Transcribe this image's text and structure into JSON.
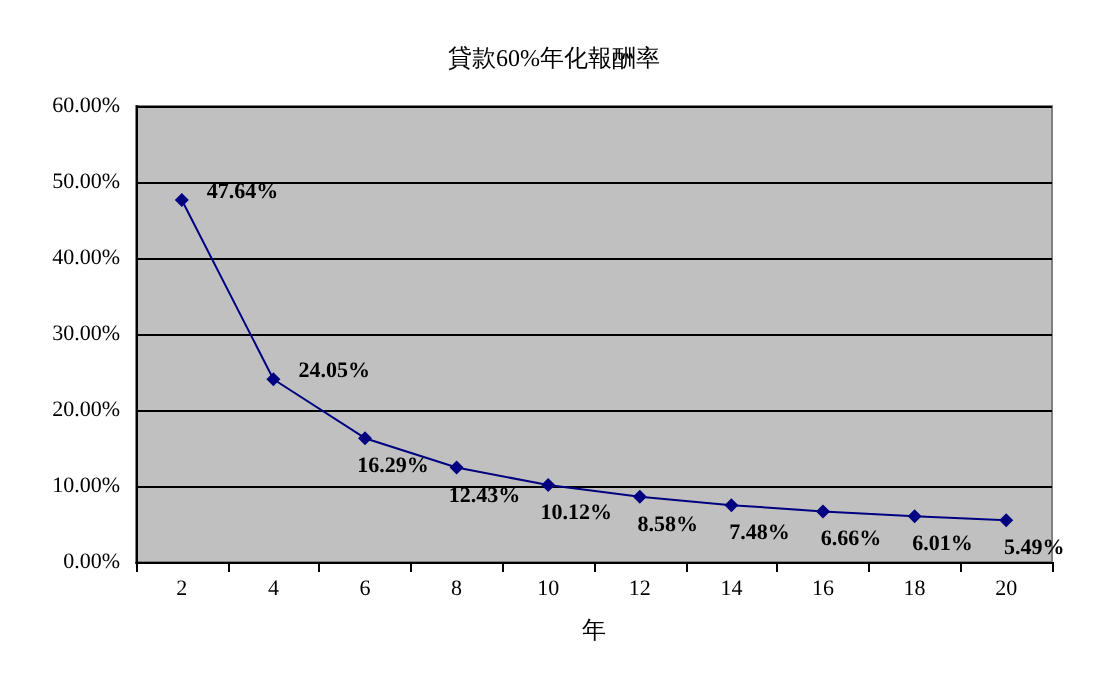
{
  "chart_data": {
    "type": "line",
    "title": "貸款60%年化報酬率",
    "xlabel": "年",
    "categories": [
      "2",
      "4",
      "6",
      "8",
      "10",
      "12",
      "14",
      "16",
      "18",
      "20"
    ],
    "series": [
      {
        "color": "#000080",
        "values": [
          47.64,
          24.05,
          16.29,
          12.43,
          10.12,
          8.58,
          7.48,
          6.66,
          6.01,
          5.49
        ],
        "value_labels": [
          "47.64%",
          "24.05%",
          "16.29%",
          "12.43%",
          "10.12%",
          "8.58%",
          "7.48%",
          "6.66%",
          "6.01%",
          "5.49%"
        ]
      }
    ],
    "ylim": [
      0,
      60
    ],
    "yticks": [
      {
        "value": 0,
        "label": "0.00%"
      },
      {
        "value": 10,
        "label": "10.00%"
      },
      {
        "value": 20,
        "label": "20.00%"
      },
      {
        "value": 30,
        "label": "30.00%"
      },
      {
        "value": 40,
        "label": "40.00%"
      },
      {
        "value": 50,
        "label": "50.00%"
      },
      {
        "value": 60,
        "label": "60.00%"
      }
    ],
    "grid": "y",
    "marker": "diamond",
    "line_style": "solid"
  }
}
